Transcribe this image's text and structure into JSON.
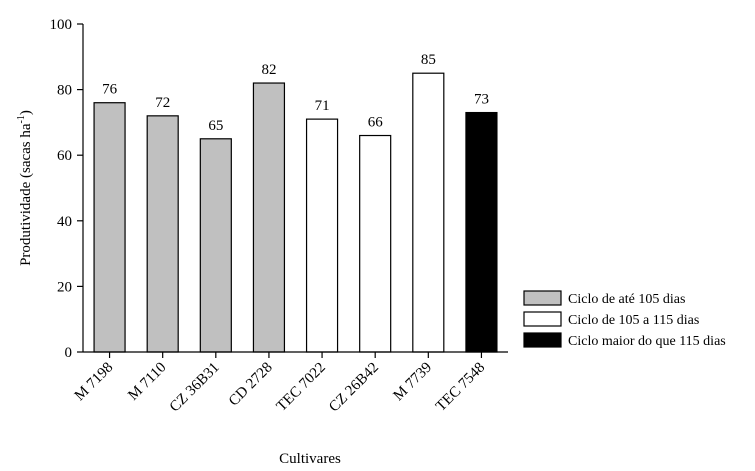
{
  "chart_data": {
    "type": "bar",
    "categories": [
      "M 7198",
      "M 7110",
      "CZ 36B31",
      "CD 2728",
      "TEC 7022",
      "CZ 26B42",
      "M 7739",
      "TEC 7548"
    ],
    "values": [
      76,
      72,
      65,
      82,
      71,
      66,
      85,
      73
    ],
    "data_labels": [
      "76",
      "72",
      "65",
      "82",
      "71",
      "66",
      "85",
      "73"
    ],
    "groups": [
      0,
      0,
      0,
      0,
      1,
      1,
      1,
      2
    ],
    "legend": [
      {
        "label": "Ciclo de até 105 dias",
        "color": "#c0c0c0"
      },
      {
        "label": "Ciclo de 105 a 115 dias",
        "color": "#ffffff"
      },
      {
        "label": "Ciclo maior do que 115 dias",
        "color": "#000000"
      }
    ],
    "xlabel": "Cultivares",
    "ylabel_main": "Produtividade (sacas ha",
    "ylabel_sup": "-1",
    "ylabel_end": ")",
    "ylim": [
      0,
      100
    ],
    "yticks": [
      0,
      20,
      40,
      60,
      80,
      100
    ],
    "grid": false,
    "legend_position": "bottom-right"
  }
}
